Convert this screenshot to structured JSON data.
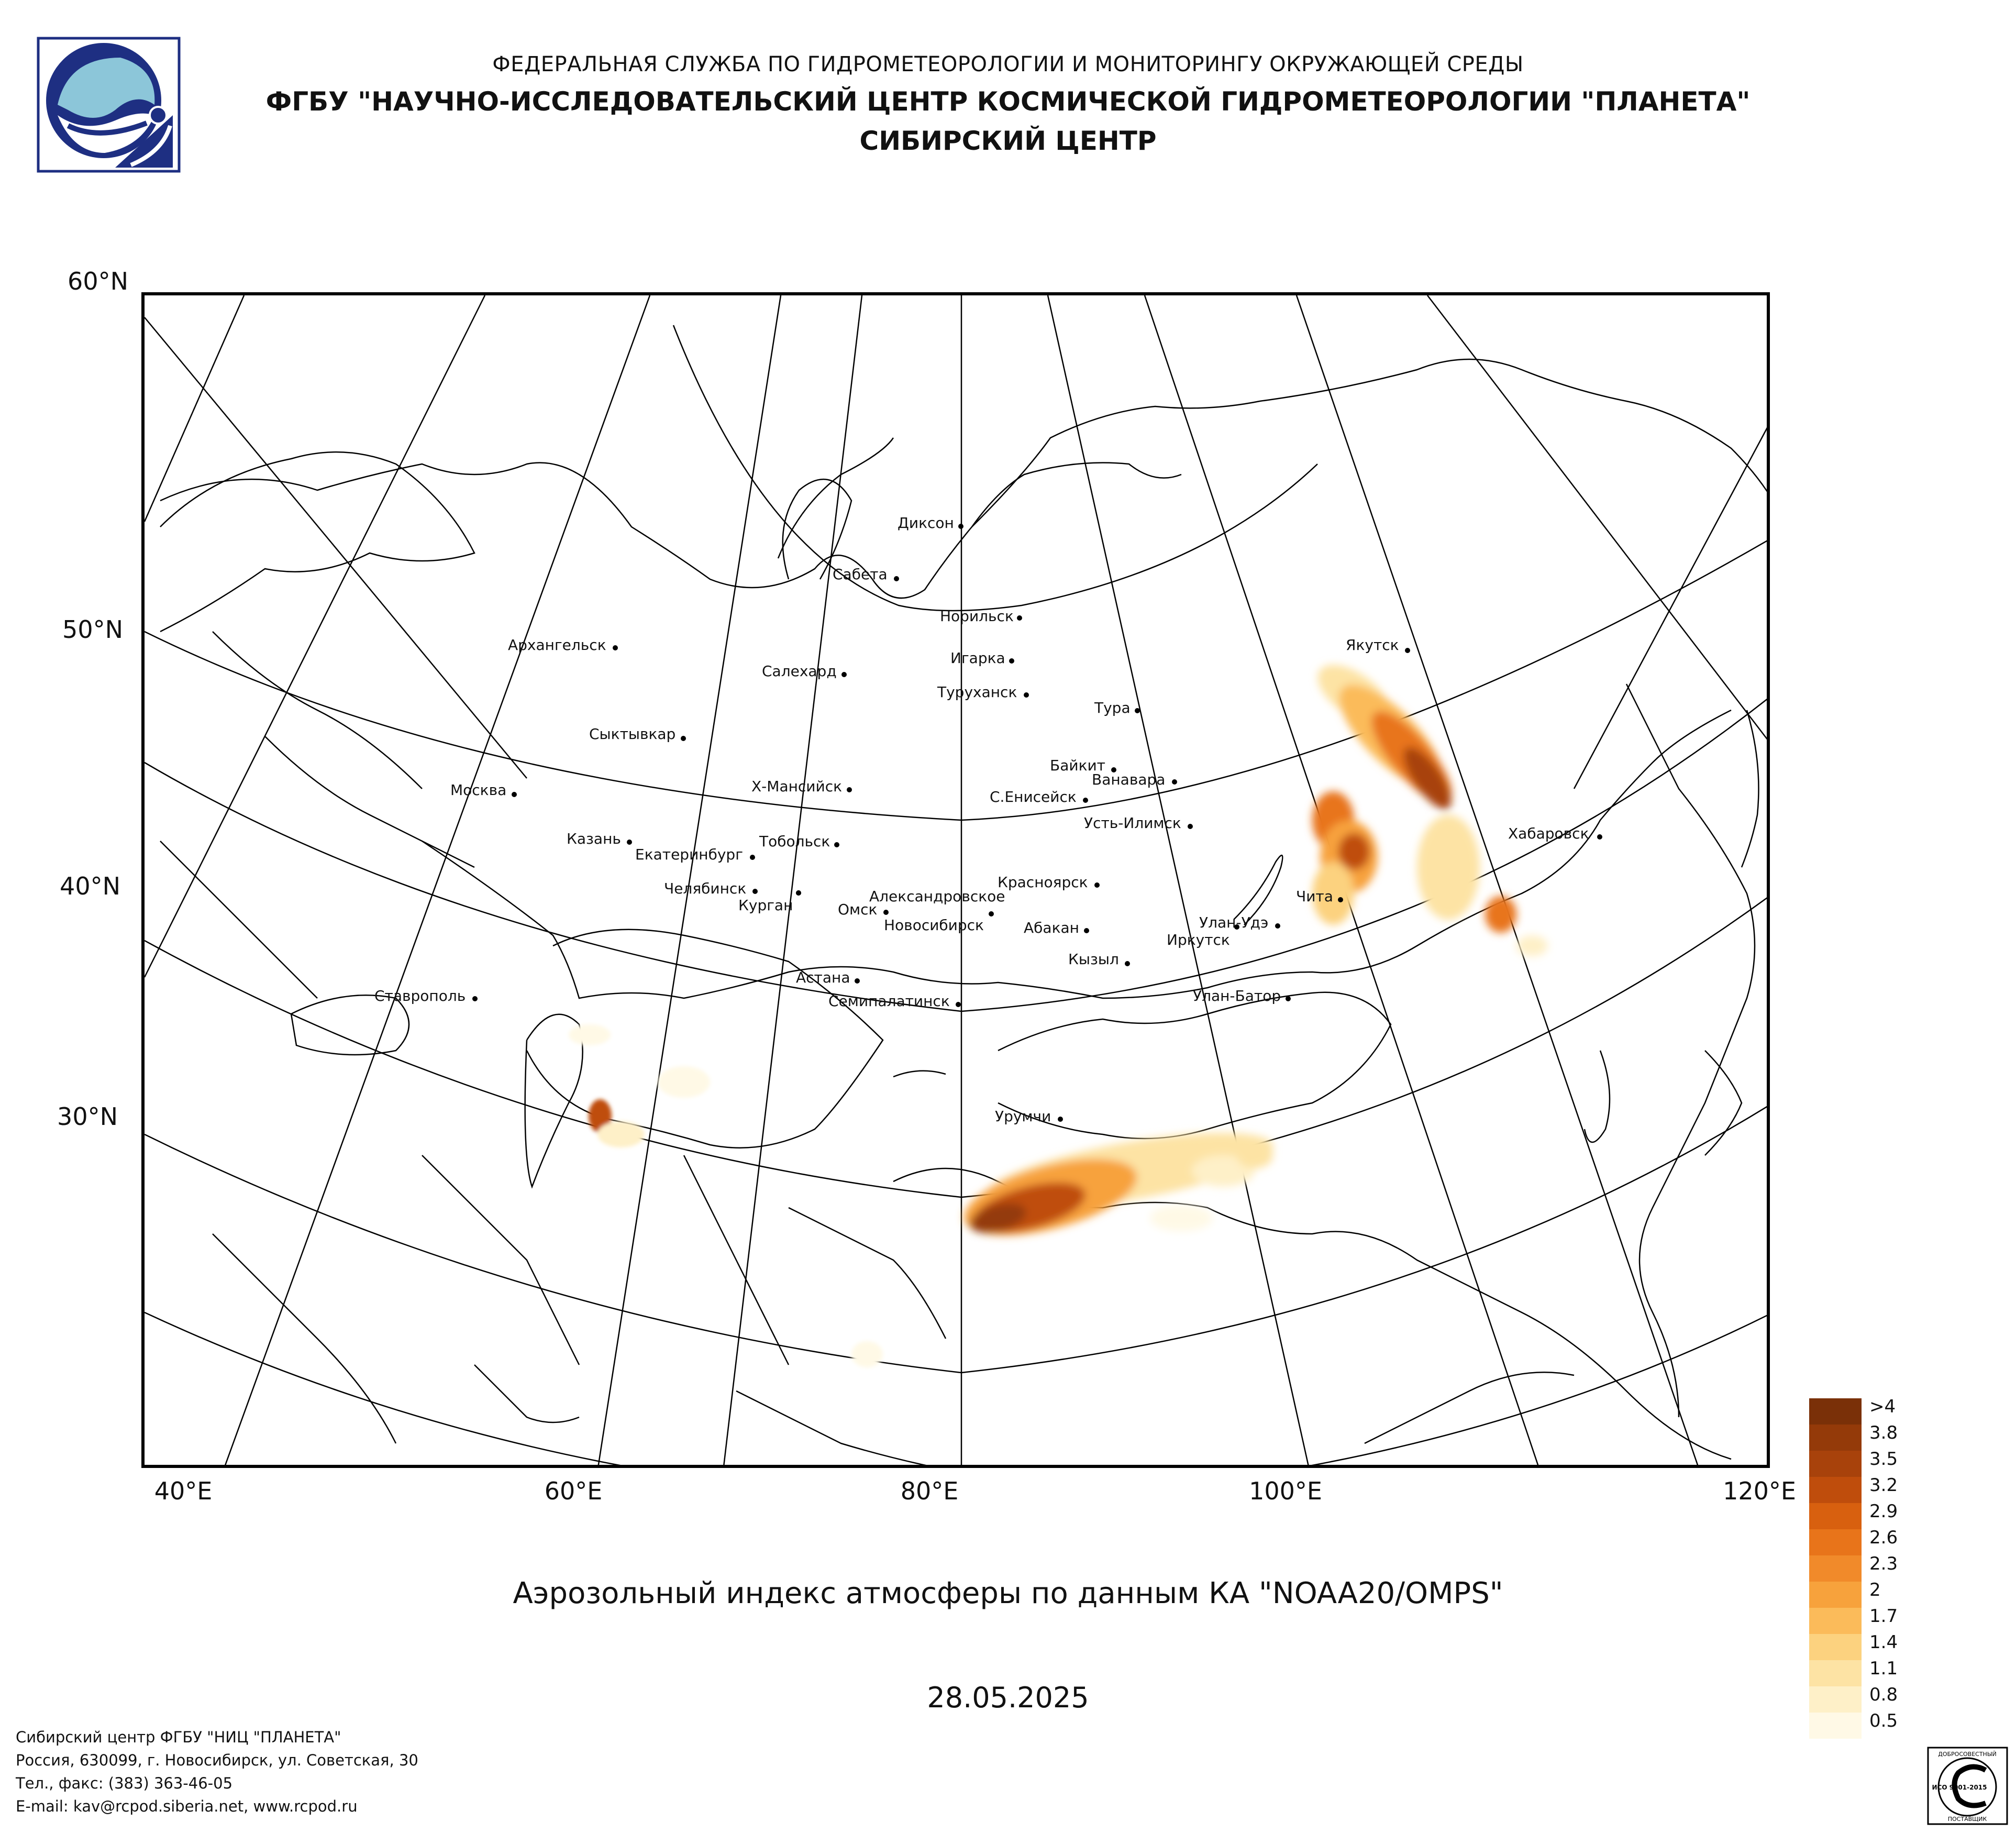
{
  "header": {
    "line1": "ФЕДЕРАЛЬНАЯ СЛУЖБА ПО ГИДРОМЕТЕОРОЛОГИИ И МОНИТОРИНГУ ОКРУЖАЮЩЕЙ СРЕДЫ",
    "line2": "ФГБУ \"НАУЧНО-ИССЛЕДОВАТЕЛЬСКИЙ ЦЕНТР КОСМИЧЕСКОЙ ГИДРОМЕТЕОРОЛОГИИ \"ПЛАНЕТА\"",
    "line3": "СИБИРСКИЙ ЦЕНТР"
  },
  "map": {
    "lat_labels": [
      "60°N",
      "50°N",
      "40°N",
      "30°N"
    ],
    "lon_labels": [
      "40°E",
      "60°E",
      "80°E",
      "100°E",
      "120°E"
    ],
    "cities": [
      {
        "name": "Диксон"
      },
      {
        "name": "Сабета"
      },
      {
        "name": "Норильск"
      },
      {
        "name": "Игарка"
      },
      {
        "name": "Архангельск"
      },
      {
        "name": "Салехард"
      },
      {
        "name": "Туруханск"
      },
      {
        "name": "Якутск"
      },
      {
        "name": "Тура"
      },
      {
        "name": "Сыктывкар"
      },
      {
        "name": "Байкит"
      },
      {
        "name": "Ванавара"
      },
      {
        "name": "Москва"
      },
      {
        "name": "Х-Мансийск"
      },
      {
        "name": "С.Енисейск"
      },
      {
        "name": "Усть-Илимск"
      },
      {
        "name": "Хабаровск"
      },
      {
        "name": "Казань"
      },
      {
        "name": "Тобольск"
      },
      {
        "name": "Екатеринбург"
      },
      {
        "name": "Красноярск"
      },
      {
        "name": "Челябинск"
      },
      {
        "name": "Александровское"
      },
      {
        "name": "Чита"
      },
      {
        "name": "Курган"
      },
      {
        "name": "Омск"
      },
      {
        "name": "Новосибирск"
      },
      {
        "name": "Абакан"
      },
      {
        "name": "Улан-Удэ"
      },
      {
        "name": "Иркутск"
      },
      {
        "name": "Кызыл"
      },
      {
        "name": "Астана"
      },
      {
        "name": "Ставрополь"
      },
      {
        "name": "Семипалатинск"
      },
      {
        "name": "Улан-Батор"
      },
      {
        "name": "Урумчи"
      }
    ],
    "title": "Аэрозольный индекс атмосферы по данным КА \"NOAA20/OMPS\"",
    "date": "28.05.2025"
  },
  "legend": {
    "entries": [
      {
        "label": ">4",
        "color": "#7a3008"
      },
      {
        "label": "3.8",
        "color": "#943a09"
      },
      {
        "label": "3.5",
        "color": "#a8420b"
      },
      {
        "label": "3.2",
        "color": "#bf4d0c"
      },
      {
        "label": "2.9",
        "color": "#d8600f"
      },
      {
        "label": "2.6",
        "color": "#e8741a"
      },
      {
        "label": "2.3",
        "color": "#f18a2a"
      },
      {
        "label": "2",
        "color": "#f7a23c"
      },
      {
        "label": "1.7",
        "color": "#fbbb5a"
      },
      {
        "label": "1.4",
        "color": "#fcd27f"
      },
      {
        "label": "1.1",
        "color": "#fde3a4"
      },
      {
        "label": "0.8",
        "color": "#fef0c8"
      },
      {
        "label": "0.5",
        "color": "#fff9e6"
      }
    ]
  },
  "footer": {
    "line1": "Сибирский центр ФГБУ \"НИЦ \"ПЛАНЕТА\"",
    "line2": "Россия, 630099, г. Новосибирск, ул. Советская, 30",
    "line3": "Тел., факс: (383) 363-46-05",
    "line4": "E-mail: kav@rcpod.siberia.net, www.rcpod.ru"
  },
  "cert": {
    "top_text": "ДОБРОСОВЕСТНЫЙ",
    "center_text": "ИСО 9001-2015",
    "bottom_text": "ПОСТАВЩИК"
  },
  "colors": {
    "logo_blue": "#1e2f82",
    "logo_light": "#8cc6d9"
  }
}
